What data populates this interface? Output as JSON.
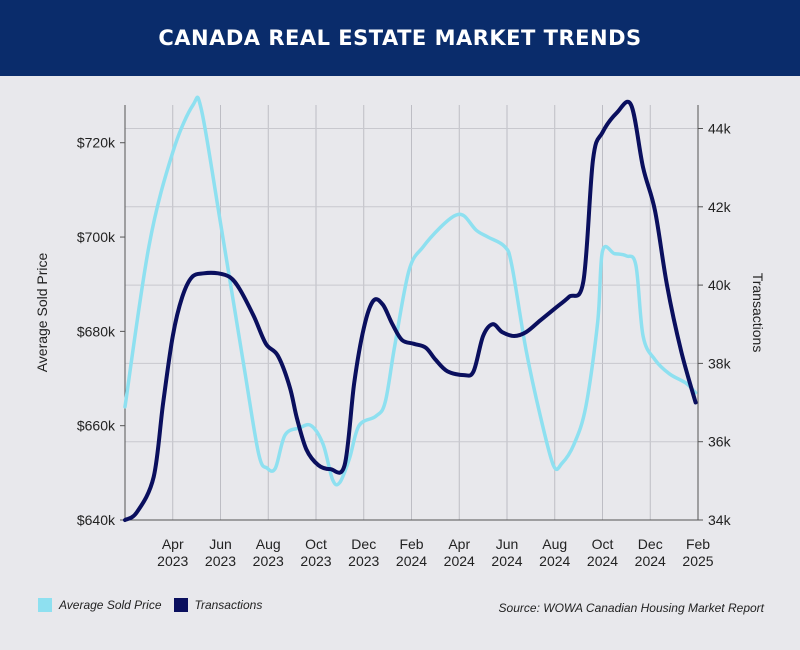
{
  "header": {
    "title": "CANADA REAL ESTATE MARKET TRENDS"
  },
  "colors": {
    "header_bg": "#0a2c6b",
    "price_series": "#8ee0f0",
    "transactions_series": "#0a0f5e"
  },
  "chart_data": {
    "type": "line",
    "title": "CANADA REAL ESTATE MARKET TRENDS",
    "x_ticks": [
      {
        "line1": "Apr",
        "line2": "2023",
        "value": 3
      },
      {
        "line1": "Jun",
        "line2": "2023",
        "value": 5
      },
      {
        "line1": "Aug",
        "line2": "2023",
        "value": 7
      },
      {
        "line1": "Oct",
        "line2": "2023",
        "value": 9
      },
      {
        "line1": "Dec",
        "line2": "2023",
        "value": 11
      },
      {
        "line1": "Feb",
        "line2": "2024",
        "value": 13
      },
      {
        "line1": "Apr",
        "line2": "2024",
        "value": 15
      },
      {
        "line1": "Jun",
        "line2": "2024",
        "value": 17
      },
      {
        "line1": "Aug",
        "line2": "2024",
        "value": 19
      },
      {
        "line1": "Oct",
        "line2": "2024",
        "value": 21
      },
      {
        "line1": "Dec",
        "line2": "2024",
        "value": 23
      },
      {
        "line1": "Feb",
        "line2": "2025",
        "value": 25
      }
    ],
    "xlim": [
      1,
      25
    ],
    "y_left": {
      "label": "Average Sold Price",
      "ylim": [
        640000,
        728000
      ],
      "ticks": [
        {
          "value": 640000,
          "label": "$640k"
        },
        {
          "value": 660000,
          "label": "$660k"
        },
        {
          "value": 680000,
          "label": "$680k"
        },
        {
          "value": 700000,
          "label": "$700k"
        },
        {
          "value": 720000,
          "label": "$720k"
        }
      ]
    },
    "y_right": {
      "label": "Transactions",
      "ylim": [
        34000,
        44600
      ],
      "ticks": [
        {
          "value": 34000,
          "label": "34k"
        },
        {
          "value": 36000,
          "label": "36k"
        },
        {
          "value": 38000,
          "label": "38k"
        },
        {
          "value": 40000,
          "label": "40k"
        },
        {
          "value": 42000,
          "label": "42k"
        },
        {
          "value": 44000,
          "label": "44k"
        }
      ]
    },
    "grid": "vertical",
    "legend_position": "bottom-left",
    "series": [
      {
        "name": "Average Sold Price",
        "axis": "left",
        "color": "#8ee0f0",
        "points": [
          [
            1,
            664000
          ],
          [
            2,
            698000
          ],
          [
            3,
            718000
          ],
          [
            3.85,
            728000
          ],
          [
            4.2,
            727000
          ],
          [
            5,
            703000
          ],
          [
            6,
            672000
          ],
          [
            6.6,
            654000
          ],
          [
            6.95,
            651000
          ],
          [
            7.3,
            651000
          ],
          [
            7.7,
            658000
          ],
          [
            8.3,
            659500
          ],
          [
            8.8,
            660000
          ],
          [
            9.3,
            656000
          ],
          [
            9.7,
            648500
          ],
          [
            10,
            648000
          ],
          [
            10.4,
            653000
          ],
          [
            10.8,
            660000
          ],
          [
            11.5,
            662000
          ],
          [
            11.9,
            665000
          ],
          [
            12.3,
            677000
          ],
          [
            12.9,
            693000
          ],
          [
            13.5,
            698000
          ],
          [
            14.2,
            702000
          ],
          [
            14.8,
            704500
          ],
          [
            15.2,
            704500
          ],
          [
            15.7,
            701500
          ],
          [
            16.2,
            700000
          ],
          [
            16.9,
            698000
          ],
          [
            17.2,
            694000
          ],
          [
            17.8,
            676000
          ],
          [
            18.4,
            662000
          ],
          [
            18.95,
            651500
          ],
          [
            19.3,
            652000
          ],
          [
            19.8,
            656000
          ],
          [
            20.3,
            664000
          ],
          [
            20.8,
            682000
          ],
          [
            21,
            697000
          ],
          [
            21.5,
            696500
          ],
          [
            22,
            696000
          ],
          [
            22.4,
            694000
          ],
          [
            22.7,
            679000
          ],
          [
            23.2,
            674000
          ],
          [
            23.8,
            671000
          ],
          [
            24.5,
            669000
          ],
          [
            24.9,
            667000
          ]
        ]
      },
      {
        "name": "Transactions",
        "axis": "right",
        "color": "#0a0f5e",
        "points": [
          [
            1,
            34000
          ],
          [
            1.5,
            34200
          ],
          [
            2.2,
            35100
          ],
          [
            2.6,
            37000
          ],
          [
            3,
            38700
          ],
          [
            3.4,
            39700
          ],
          [
            3.8,
            40200
          ],
          [
            4.3,
            40300
          ],
          [
            4.9,
            40300
          ],
          [
            5.4,
            40200
          ],
          [
            5.8,
            39900
          ],
          [
            6.4,
            39200
          ],
          [
            6.9,
            38500
          ],
          [
            7.4,
            38200
          ],
          [
            7.9,
            37400
          ],
          [
            8.2,
            36600
          ],
          [
            8.6,
            35800
          ],
          [
            9.1,
            35400
          ],
          [
            9.6,
            35300
          ],
          [
            10.2,
            35400
          ],
          [
            10.6,
            37500
          ],
          [
            11,
            38900
          ],
          [
            11.4,
            39600
          ],
          [
            11.8,
            39500
          ],
          [
            12.2,
            39000
          ],
          [
            12.6,
            38600
          ],
          [
            13.1,
            38500
          ],
          [
            13.6,
            38400
          ],
          [
            14,
            38100
          ],
          [
            14.5,
            37800
          ],
          [
            15.2,
            37700
          ],
          [
            15.6,
            37800
          ],
          [
            16,
            38700
          ],
          [
            16.4,
            39000
          ],
          [
            16.8,
            38800
          ],
          [
            17.3,
            38700
          ],
          [
            17.8,
            38800
          ],
          [
            18.4,
            39100
          ],
          [
            19,
            39400
          ],
          [
            19.6,
            39700
          ],
          [
            20.2,
            40100
          ],
          [
            20.6,
            43200
          ],
          [
            21,
            43900
          ],
          [
            21.6,
            44400
          ],
          [
            22.2,
            44600
          ],
          [
            22.7,
            43000
          ],
          [
            23.2,
            41900
          ],
          [
            23.7,
            40000
          ],
          [
            24.3,
            38300
          ],
          [
            24.9,
            37000
          ]
        ]
      }
    ],
    "source": "Source: WOWA Canadian Housing Market Report"
  }
}
